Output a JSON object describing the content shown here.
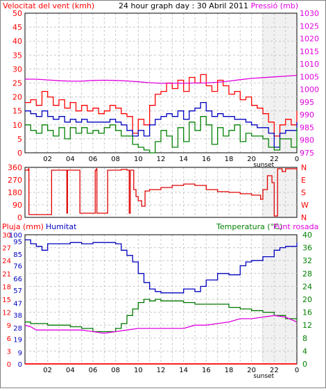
{
  "colors": {
    "wind": "#ff0000",
    "wind_avg": "#0000c0",
    "wind_low": "#008000",
    "pressure": "#e000e0",
    "direction": "#e00000",
    "rain": "#ff0000",
    "humidity": "#0000c0",
    "temperature": "#007700",
    "dewpoint": "#e000e0",
    "grid": "#c8c8c8",
    "sunset_band": "#d8d8d8",
    "axis_left_top": "#ff0000",
    "axis_right_top": "#e000e0"
  },
  "chart_data": [
    {
      "type": "line",
      "title": "24 hour graph day : 30 Abril 2011",
      "ylabel_left": "Velocitat del vent (kmh)",
      "ylabel_right": "Pressió (mb)",
      "ylim_left": [
        0,
        50
      ],
      "ylim_right": [
        975,
        1030
      ],
      "yticks_left": [
        "0",
        "5",
        "10",
        "15",
        "20",
        "25",
        "30",
        "35",
        "40",
        "45",
        "50"
      ],
      "yticks_right": [
        "975",
        "980",
        "985",
        "990",
        "995",
        "1000",
        "1005",
        "1010",
        "1015",
        "1020",
        "1025",
        "1030"
      ],
      "x_range_hours": [
        0,
        24
      ],
      "xticks": [
        "02",
        "04",
        "06",
        "08",
        "10",
        "12",
        "14",
        "16",
        "18",
        "20",
        "22",
        "0"
      ],
      "x_annotation": "sunset",
      "sunset_hour": 20.9,
      "grid": true,
      "series": [
        {
          "key": "wind_gust",
          "axis": "left",
          "x": [
            0,
            0.5,
            1,
            1.5,
            2,
            2.5,
            3,
            3.5,
            4,
            4.5,
            5,
            5.5,
            6,
            6.5,
            7,
            7.5,
            8,
            8.5,
            9,
            9.5,
            10,
            10.5,
            11,
            11.5,
            12,
            12.5,
            13,
            13.5,
            14,
            14.5,
            15,
            15.5,
            16,
            16.5,
            17,
            17.5,
            18,
            18.5,
            19,
            19.5,
            20,
            20.5,
            21,
            21.5,
            22,
            22.5,
            23,
            23.5,
            24
          ],
          "values": [
            18,
            19,
            17,
            22,
            20,
            17,
            19,
            16,
            18,
            15,
            17,
            15,
            16,
            14,
            15,
            17,
            16,
            14,
            13,
            7,
            12,
            10,
            17,
            21,
            22,
            25,
            23,
            26,
            22,
            27,
            25,
            28,
            24,
            22,
            26,
            24,
            21,
            22,
            19,
            20,
            17,
            16,
            14,
            11,
            6,
            10,
            12,
            10,
            15
          ]
        },
        {
          "key": "wind_avg",
          "axis": "left",
          "x": [
            0,
            0.5,
            1,
            1.5,
            2,
            2.5,
            3,
            3.5,
            4,
            4.5,
            5,
            5.5,
            6,
            6.5,
            7,
            7.5,
            8,
            8.5,
            9,
            9.5,
            10,
            10.5,
            11,
            11.5,
            12,
            12.5,
            13,
            13.5,
            14,
            14.5,
            15,
            15.5,
            16,
            16.5,
            17,
            17.5,
            18,
            18.5,
            19,
            19.5,
            20,
            20.5,
            21,
            21.5,
            22,
            22.5,
            23,
            23.5,
            24
          ],
          "values": [
            15,
            14,
            13,
            15,
            13,
            12,
            13,
            11,
            12,
            11,
            12,
            11,
            11,
            11,
            11,
            12,
            11,
            10,
            8,
            6,
            8,
            6,
            10,
            12,
            13,
            14,
            13,
            15,
            12,
            15,
            16,
            18,
            15,
            13,
            14,
            13,
            13,
            12,
            12,
            11,
            10,
            9,
            9,
            7,
            2,
            7,
            8,
            8,
            11
          ]
        },
        {
          "key": "wind_low",
          "axis": "left",
          "x": [
            0,
            0.5,
            1,
            1.5,
            2,
            2.5,
            3,
            3.5,
            4,
            4.5,
            5,
            5.5,
            6,
            6.5,
            7,
            7.5,
            8,
            8.5,
            9,
            9.5,
            10,
            10.5,
            11,
            11.5,
            12,
            12.5,
            13,
            13.5,
            14,
            14.5,
            15,
            15.5,
            16,
            16.5,
            17,
            17.5,
            18,
            18.5,
            19,
            19.5,
            20,
            20.5,
            21,
            21.5,
            22,
            22.5,
            23,
            23.5,
            24
          ],
          "values": [
            10,
            8,
            7,
            10,
            8,
            6,
            9,
            5,
            9,
            7,
            9,
            7,
            8,
            7,
            9,
            10,
            8,
            6,
            6,
            3,
            2,
            1,
            0,
            4,
            8,
            6,
            2,
            9,
            4,
            11,
            8,
            13,
            10,
            3,
            9,
            6,
            8,
            10,
            4,
            7,
            6,
            6,
            5,
            2,
            1,
            5,
            5,
            2,
            9
          ]
        },
        {
          "key": "pressure",
          "axis": "right",
          "x": [
            0,
            1,
            2,
            3,
            4,
            5,
            6,
            7,
            8,
            9,
            10,
            11,
            12,
            13,
            14,
            15,
            16,
            17,
            18,
            19,
            20,
            21,
            22,
            23,
            24
          ],
          "values": [
            1004,
            1004,
            1003.7,
            1003.4,
            1003.2,
            1003.2,
            1003.5,
            1003.6,
            1003.5,
            1003.3,
            1003,
            1002.6,
            1002.4,
            1002.4,
            1002.4,
            1002.5,
            1002.5,
            1002.8,
            1003.2,
            1003.8,
            1004.3,
            1004.6,
            1004.9,
            1005.2,
            1005.5
          ]
        }
      ]
    },
    {
      "type": "line",
      "yticks_left": [
        "0",
        "90",
        "180",
        "270",
        "360"
      ],
      "ylim_left": [
        0,
        360
      ],
      "yticks_right": [
        "N",
        "W",
        "S",
        "E",
        "N"
      ],
      "series": [
        {
          "key": "wind_direction",
          "x": [
            0,
            0.3,
            0.35,
            2.3,
            2.35,
            3.6,
            3.7,
            3.75,
            4.8,
            4.85,
            6.2,
            6.3,
            6.35,
            7.3,
            7.4,
            8.5,
            9.0,
            9.2,
            9.3,
            9.6,
            9.8,
            10.0,
            10.3,
            10.6,
            11,
            12,
            13,
            14,
            15,
            16,
            17,
            18,
            19,
            20,
            20.8,
            21.0,
            21.4,
            21.8,
            22.0,
            22.3,
            22.7,
            23,
            24
          ],
          "values": [
            340,
            350,
            20,
            20,
            340,
            340,
            30,
            340,
            340,
            30,
            340,
            350,
            30,
            340,
            340,
            345,
            340,
            30,
            340,
            200,
            150,
            120,
            80,
            190,
            200,
            215,
            230,
            240,
            230,
            200,
            185,
            180,
            170,
            160,
            130,
            200,
            300,
            250,
            10,
            350,
            330,
            350,
            340
          ]
        }
      ]
    },
    {
      "type": "line",
      "ylabel_left_1": "Pluja (mm)",
      "ylabel_left_2": "Humitat",
      "ylabel_right_1": "Temperatura (°C)",
      "ylabel_right_2": "Punt rosada",
      "ylim_humidity": [
        0,
        100
      ],
      "ylim_rain": [
        0,
        30
      ],
      "ylim_temp": [
        0,
        40
      ],
      "yticks_humidity": [
        "0",
        "9",
        "19",
        "28",
        "38",
        "47",
        "57",
        "66",
        "76",
        "85",
        "95",
        "100"
      ],
      "yticks_rain": [
        "0",
        "3",
        "6",
        "9",
        "12",
        "15",
        "18",
        "21",
        "24",
        "27",
        "30"
      ],
      "yticks_temp": [
        "0",
        "4",
        "8",
        "12",
        "16",
        "20",
        "24",
        "28",
        "32",
        "36",
        "40"
      ],
      "xticks": [
        "02",
        "04",
        "06",
        "08",
        "10",
        "12",
        "14",
        "16",
        "18",
        "20",
        "22",
        "0"
      ],
      "x_annotation": "sunset",
      "series": [
        {
          "key": "rain",
          "axis": "rain",
          "x": [
            0,
            24
          ],
          "values": [
            0,
            0
          ]
        },
        {
          "key": "humidity",
          "axis": "humidity",
          "x": [
            0,
            0.5,
            1,
            1.5,
            2,
            3,
            4,
            5,
            6,
            7,
            8,
            8.5,
            9,
            9.5,
            10,
            10.5,
            11,
            11.5,
            12,
            13,
            14,
            15,
            15.5,
            16,
            17,
            17.5,
            18,
            19,
            19.5,
            20,
            21,
            22,
            22.5,
            23,
            23.5,
            24
          ],
          "values": [
            96,
            93,
            91,
            88,
            93,
            93,
            94,
            93,
            94,
            94,
            93,
            88,
            84,
            79,
            70,
            63,
            58,
            56,
            55,
            55,
            58,
            56,
            60,
            65,
            70,
            70,
            69,
            76,
            79,
            80,
            83,
            88,
            90,
            91,
            91,
            94
          ]
        },
        {
          "key": "temperature",
          "axis": "temp",
          "x": [
            0,
            0.5,
            1,
            2,
            3,
            4,
            5,
            6,
            7,
            7.5,
            8,
            8.5,
            9,
            9.5,
            10,
            10.5,
            11,
            11.5,
            12,
            13,
            14,
            15,
            16,
            17,
            18,
            19,
            20,
            21,
            22,
            23,
            24
          ],
          "values": [
            13,
            12.5,
            12.5,
            12,
            12,
            11.5,
            11,
            10,
            10,
            10,
            11,
            12.5,
            15,
            17,
            19,
            20,
            19.5,
            20,
            19.5,
            19.5,
            19,
            18.5,
            18.5,
            18.5,
            17.5,
            17,
            16.5,
            16,
            15,
            14,
            13
          ]
        },
        {
          "key": "dewpoint",
          "axis": "temp",
          "x": [
            0,
            0.5,
            1,
            2,
            3,
            4,
            5,
            6,
            7,
            8,
            9,
            10,
            11,
            12,
            13,
            14,
            15,
            16,
            17,
            18,
            19,
            20,
            21,
            22,
            23,
            24
          ],
          "values": [
            12,
            11.5,
            10.5,
            10.5,
            10.5,
            10.5,
            10.5,
            10,
            9.5,
            10,
            10.5,
            11,
            11,
            11,
            11,
            11,
            12,
            12,
            12.5,
            13,
            14,
            14,
            14.5,
            15,
            14.5,
            13
          ]
        }
      ]
    }
  ]
}
